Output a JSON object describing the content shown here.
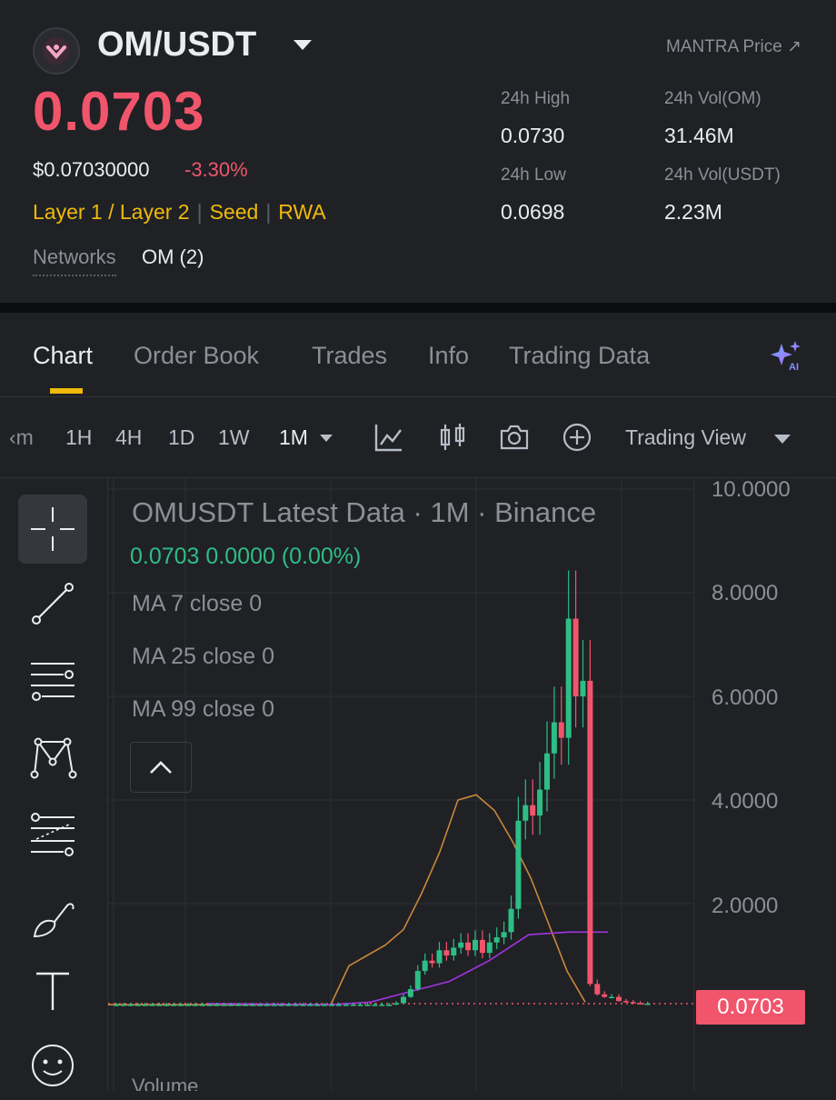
{
  "header": {
    "pair": "OM/USDT",
    "external_link": "MANTRA Price ↗",
    "price": "0.0703",
    "usd_price": "$0.07030000",
    "change": "-3.30%",
    "tags": [
      "Layer 1 / Layer 2",
      "Seed",
      "RWA"
    ],
    "networks_label": "Networks",
    "networks_value": "OM (2)"
  },
  "stats": {
    "high_label": "24h High",
    "high_value": "0.0730",
    "low_label": "24h Low",
    "low_value": "0.0698",
    "vol_om_label": "24h Vol(OM)",
    "vol_om_value": "31.46M",
    "vol_usdt_label": "24h Vol(USDT)",
    "vol_usdt_value": "2.23M"
  },
  "tabs": [
    "Chart",
    "Order Book",
    "Trades",
    "Info",
    "Trading Data"
  ],
  "active_tab": "Chart",
  "timeframes": {
    "scroll_left": "‹m",
    "items": [
      "1H",
      "4H",
      "1D",
      "1W"
    ],
    "selected": "1M",
    "trading_view": "Trading View"
  },
  "icons": {
    "ai": "ai-sparkle-icon",
    "indicator": "chart-line-icon",
    "candle": "candlestick-icon",
    "camera": "camera-icon",
    "add": "plus-circle-icon"
  },
  "chart_legend": {
    "title": "OMUSDT Latest Data · 1M · Binance",
    "ohlc": "0.0703  0.0000 (0.00%)",
    "ma7": "MA 7 close 0",
    "ma25": "MA 25 close 0",
    "ma99": "MA 99 close 0",
    "volume": "Volume"
  },
  "colors": {
    "up": "#2ebd85",
    "down": "#f0556b",
    "accent": "#f0b90b",
    "ma25": "#c8873a",
    "ma99": "#a234e0"
  },
  "chart_data": {
    "type": "candlestick",
    "y_axis_labels": [
      "10.0000",
      "8.0000",
      "6.0000",
      "4.0000",
      "2.0000"
    ],
    "ylim": [
      0,
      10
    ],
    "last_price_label": "0.0703",
    "close_values": [
      0.05,
      0.05,
      0.05,
      0.05,
      0.05,
      0.05,
      0.05,
      0.05,
      0.05,
      0.05,
      0.05,
      0.05,
      0.05,
      0.05,
      0.05,
      0.05,
      0.05,
      0.05,
      0.05,
      0.05,
      0.05,
      0.05,
      0.05,
      0.05,
      0.05,
      0.05,
      0.05,
      0.05,
      0.05,
      0.05,
      0.05,
      0.05,
      0.05,
      0.05,
      0.05,
      0.05,
      0.05,
      0.05,
      0.05,
      0.08,
      0.2,
      0.35,
      0.7,
      0.9,
      0.85,
      1.1,
      1.0,
      1.15,
      1.25,
      1.1,
      1.3,
      1.05,
      1.25,
      1.35,
      1.45,
      1.9,
      3.6,
      3.9,
      3.7,
      4.2,
      4.9,
      5.5,
      5.2,
      7.5,
      6.0,
      6.3,
      0.45,
      0.25,
      0.2,
      0.2,
      0.12,
      0.1,
      0.08,
      0.06,
      0.07
    ],
    "ma25_values": [
      0.05,
      0.8,
      1.0,
      1.2,
      1.5,
      2.2,
      3.0,
      4.0,
      4.1,
      3.8,
      3.2,
      2.5,
      1.6,
      0.7,
      0.1
    ],
    "ma99_values": [
      0.05,
      0.1,
      0.3,
      0.5,
      0.9,
      1.4,
      1.45,
      1.45
    ]
  }
}
